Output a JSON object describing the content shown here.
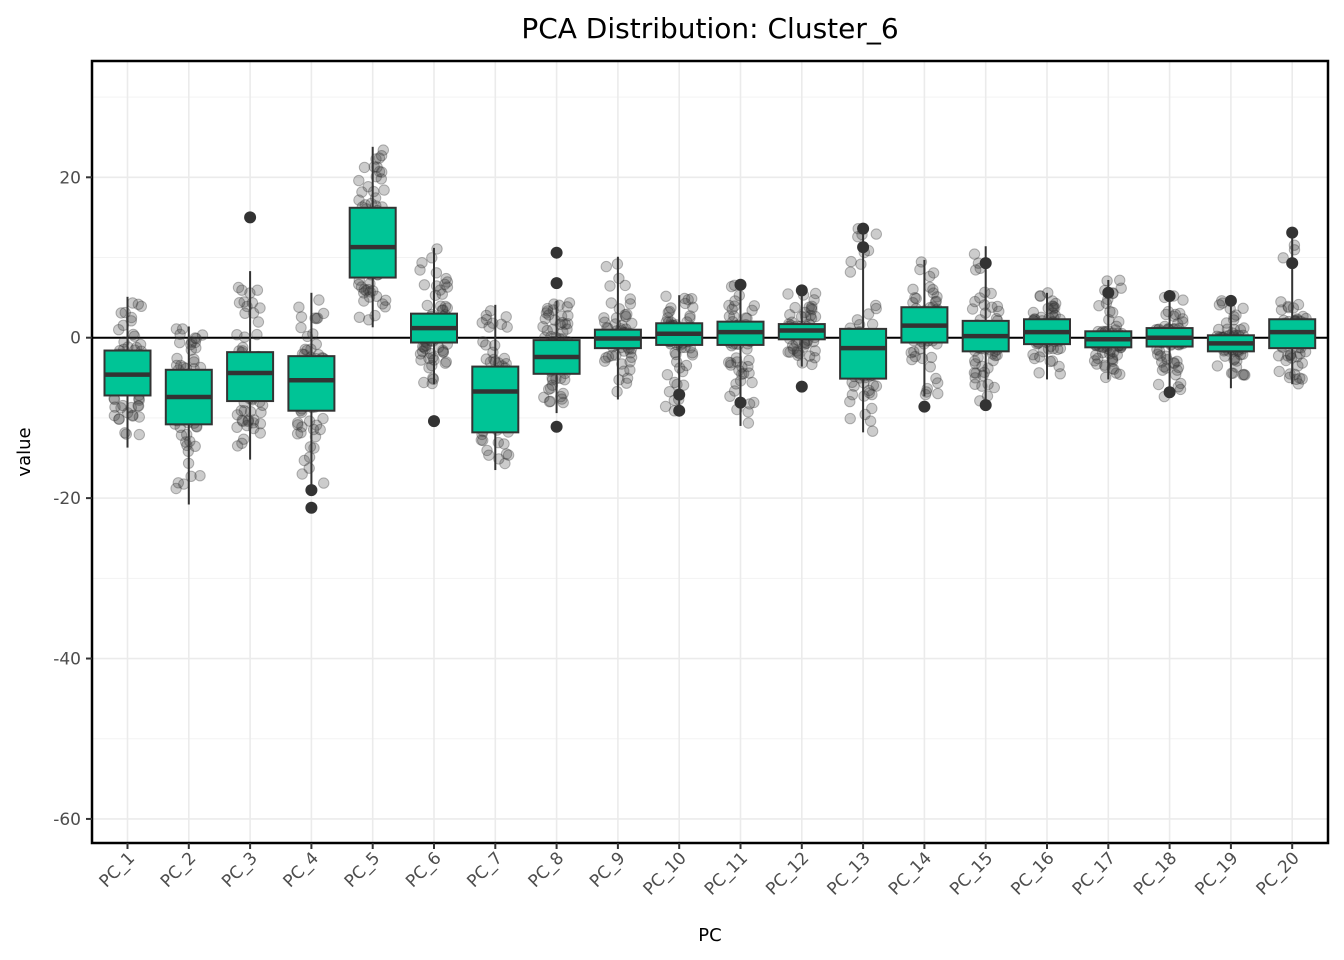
{
  "chart_data": {
    "type": "boxplot",
    "title": "PCA Distribution: Cluster_6",
    "xlabel": "PC",
    "ylabel": "value",
    "ylim": [
      -63,
      34.5
    ],
    "yticks": [
      20,
      0,
      -20,
      -40,
      -60
    ],
    "ytick_labels": [
      "20",
      "0",
      "-20",
      "-40",
      "-60"
    ],
    "reference_line_y": 0,
    "grid": true,
    "box_color": "#00C496",
    "outline_color": "#333333",
    "point_color": "#333333",
    "categories": [
      "PC_1",
      "PC_2",
      "PC_3",
      "PC_4",
      "PC_5",
      "PC_6",
      "PC_7",
      "PC_8",
      "PC_9",
      "PC_10",
      "PC_11",
      "PC_12",
      "PC_13",
      "PC_14",
      "PC_15",
      "PC_16",
      "PC_17",
      "PC_18",
      "PC_19",
      "PC_20"
    ],
    "boxes": [
      {
        "q1": -7.2,
        "median": -4.6,
        "q3": -1.6,
        "whisker_low": -13.7,
        "whisker_high": 5.1,
        "outliers": []
      },
      {
        "q1": -10.8,
        "median": -7.4,
        "q3": -4.0,
        "whisker_low": -20.8,
        "whisker_high": 1.4,
        "outliers": []
      },
      {
        "q1": -7.9,
        "median": -4.4,
        "q3": -1.8,
        "whisker_low": -15.2,
        "whisker_high": 8.3,
        "outliers": [
          15.0
        ]
      },
      {
        "q1": -9.1,
        "median": -5.3,
        "q3": -2.3,
        "whisker_low": -19.0,
        "whisker_high": 5.6,
        "outliers": [
          -19.0,
          -21.2
        ]
      },
      {
        "q1": 7.5,
        "median": 11.3,
        "q3": 16.2,
        "whisker_low": 1.3,
        "whisker_high": 23.8,
        "outliers": []
      },
      {
        "q1": -0.6,
        "median": 1.2,
        "q3": 3.0,
        "whisker_low": -5.8,
        "whisker_high": 11.2,
        "outliers": [
          -10.4
        ]
      },
      {
        "q1": -11.8,
        "median": -6.7,
        "q3": -3.6,
        "whisker_low": -16.5,
        "whisker_high": 4.1,
        "outliers": []
      },
      {
        "q1": -4.5,
        "median": -2.4,
        "q3": -0.3,
        "whisker_low": -9.4,
        "whisker_high": 4.6,
        "outliers": [
          10.6,
          6.8,
          -11.1
        ]
      },
      {
        "q1": -1.3,
        "median": -0.1,
        "q3": 1.0,
        "whisker_low": -7.7,
        "whisker_high": 10.1,
        "outliers": []
      },
      {
        "q1": -0.9,
        "median": 0.5,
        "q3": 1.8,
        "whisker_low": -9.7,
        "whisker_high": 5.3,
        "outliers": [
          -7.1,
          -9.1
        ]
      },
      {
        "q1": -0.9,
        "median": 0.7,
        "q3": 2.0,
        "whisker_low": -11.0,
        "whisker_high": 7.3,
        "outliers": [
          6.6,
          -8.1
        ]
      },
      {
        "q1": -0.2,
        "median": 0.9,
        "q3": 1.7,
        "whisker_low": -3.6,
        "whisker_high": 5.9,
        "outliers": [
          5.9,
          -6.1
        ]
      },
      {
        "q1": -5.1,
        "median": -1.3,
        "q3": 1.1,
        "whisker_low": -11.8,
        "whisker_high": 13.6,
        "outliers": [
          13.6,
          11.3
        ]
      },
      {
        "q1": -0.6,
        "median": 1.5,
        "q3": 3.8,
        "whisker_low": -7.3,
        "whisker_high": 9.7,
        "outliers": [
          -8.6
        ]
      },
      {
        "q1": -1.7,
        "median": 0.2,
        "q3": 2.1,
        "whisker_low": -8.4,
        "whisker_high": 11.4,
        "outliers": [
          9.3,
          -8.4
        ]
      },
      {
        "q1": -0.8,
        "median": 0.7,
        "q3": 2.3,
        "whisker_low": -5.2,
        "whisker_high": 5.6,
        "outliers": []
      },
      {
        "q1": -1.2,
        "median": -0.2,
        "q3": 0.8,
        "whisker_low": -5.2,
        "whisker_high": 7.2,
        "outliers": [
          5.6
        ]
      },
      {
        "q1": -1.1,
        "median": 0.0,
        "q3": 1.2,
        "whisker_low": -7.4,
        "whisker_high": 5.2,
        "outliers": [
          5.2,
          -6.8
        ]
      },
      {
        "q1": -1.7,
        "median": -0.7,
        "q3": 0.3,
        "whisker_low": -6.3,
        "whisker_high": 4.9,
        "outliers": [
          4.6
        ]
      },
      {
        "q1": -1.3,
        "median": 0.7,
        "q3": 2.3,
        "whisker_low": -5.8,
        "whisker_high": 13.1,
        "outliers": [
          13.1,
          9.3
        ]
      }
    ]
  }
}
